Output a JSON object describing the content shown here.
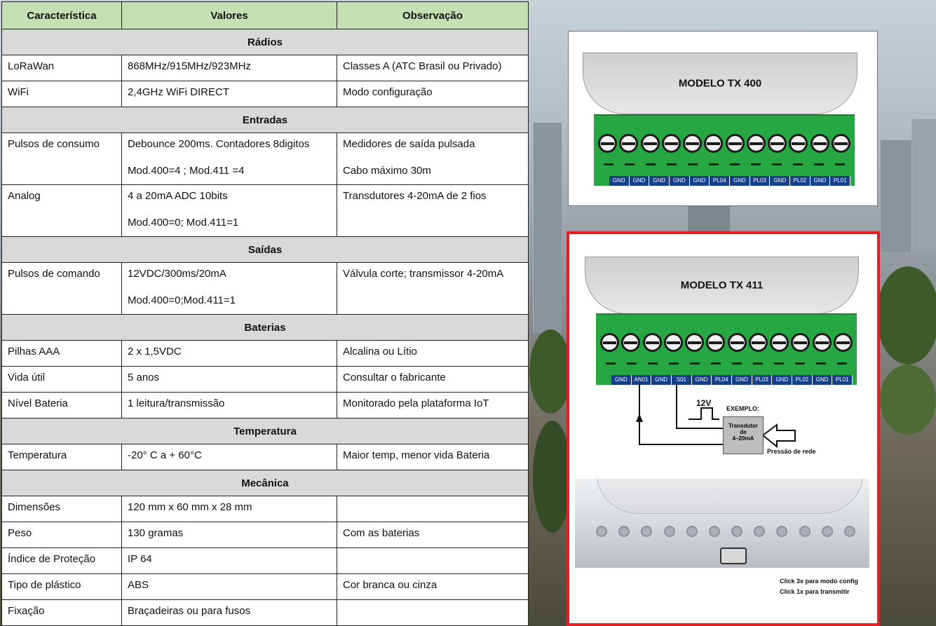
{
  "table": {
    "headers": [
      "Característica",
      "Valores",
      "Observação"
    ],
    "sections": [
      {
        "title": "Rádios",
        "rows": [
          {
            "c": "LoRaWan",
            "v": [
              "868MHz/915MHz/923MHz"
            ],
            "o": [
              "Classes A  (ATC Brasil ou Privado)"
            ]
          },
          {
            "c": "WiFi",
            "v": [
              "2,4GHz  WiFi DIRECT"
            ],
            "o": [
              "Modo configuração"
            ]
          }
        ]
      },
      {
        "title": "Entradas",
        "rows": [
          {
            "c": "Pulsos de consumo",
            "v": [
              "Debounce 200ms. Contadores 8digitos",
              "Mod.400=4 ; Mod.411 =4"
            ],
            "o": [
              "Medidores de saída pulsada",
              "Cabo máximo 30m"
            ]
          },
          {
            "c": "Analog",
            "v": [
              "4 a 20mA  ADC 10bits",
              "Mod.400=0; Mod.411=1"
            ],
            "o": [
              "Transdutores 4-20mA de 2 fios"
            ]
          }
        ]
      },
      {
        "title": "Saídas",
        "rows": [
          {
            "c": "Pulsos de comando",
            "v": [
              "12VDC/300ms/20mA",
              "Mod.400=0;Mod.411=1"
            ],
            "o": [
              "Válvula corte; transmissor 4-20mA"
            ]
          }
        ]
      },
      {
        "title": "Baterias",
        "rows": [
          {
            "c": "Pilhas AAA",
            "v": [
              "2 x 1,5VDC"
            ],
            "o": [
              "Alcalina ou Lítio"
            ]
          },
          {
            "c": "Vida útil",
            "v": [
              "5 anos"
            ],
            "o": [
              "Consultar o fabricante"
            ]
          },
          {
            "c": "Nível Bateria",
            "v": [
              "1 leitura/transmissão"
            ],
            "o": [
              "Monitorado pela plataforma IoT"
            ]
          }
        ]
      },
      {
        "title": "Temperatura",
        "rows": [
          {
            "c": "Temperatura",
            "v": [
              "-20° C a    + 60°C"
            ],
            "o": [
              "Maior temp, menor vida Bateria"
            ]
          }
        ]
      },
      {
        "title": "Mecânica",
        "rows": [
          {
            "c": "Dimensões",
            "v": [
              "120 mm x 60 mm x 28 mm"
            ],
            "o": [
              ""
            ]
          },
          {
            "c": "Peso",
            "v": [
              "130  gramas"
            ],
            "o": [
              "Com as baterias"
            ]
          },
          {
            "c": "Índice de Proteção",
            "v": [
              "IP 64"
            ],
            "o": [
              ""
            ]
          },
          {
            "c": "Tipo de plástico",
            "v": [
              "ABS"
            ],
            "o": [
              "Cor branca ou cinza"
            ]
          },
          {
            "c": "Fixação",
            "v": [
              "Braçadeiras ou para fusos"
            ],
            "o": [
              ""
            ]
          }
        ]
      }
    ]
  },
  "tx400": {
    "model": "MODELO TX 400",
    "terminals": [
      "GND",
      "GND",
      "GND",
      "GND",
      "GND",
      "PL04",
      "GND",
      "PL03",
      "GND",
      "PL02",
      "GND",
      "PL01"
    ]
  },
  "tx411": {
    "model": "MODELO TX 411",
    "terminals": [
      "GND",
      "AN01",
      "GND",
      "S01",
      "GND",
      "PL04",
      "GND",
      "PL03",
      "GND",
      "PL02",
      "GND",
      "PL01"
    ],
    "voltage": "12V",
    "example": "EXEMPLO:",
    "transducer": [
      "Transdutor",
      "de",
      "4–20mA"
    ],
    "pressure": "Pressão de rede",
    "click1": "Click 3x para modo config",
    "click2": "Click 1x para transmitir"
  },
  "colors": {
    "header_bg": "#c5e0b3",
    "section_bg": "#d9d9d9",
    "terminal": "#27a743",
    "label_bar": "#163f8a",
    "highlight": "#e31e24"
  }
}
